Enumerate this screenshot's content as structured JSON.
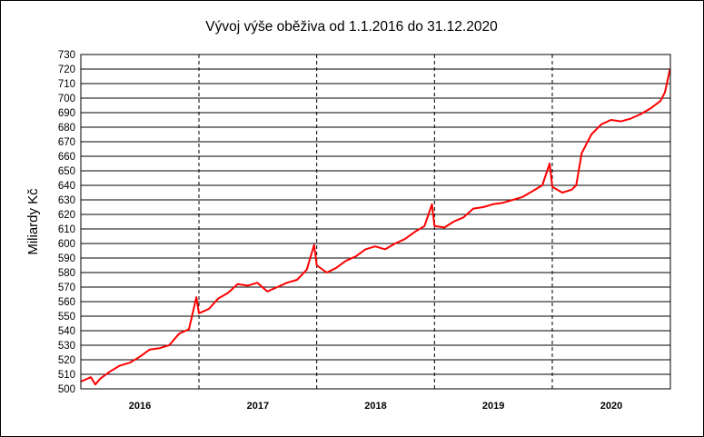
{
  "chart_data": {
    "type": "line",
    "title": "Vývoj výše oběživa od 1.1.2016 do 31.12.2020",
    "xlabel": "",
    "ylabel": "Miliardy Kč",
    "ylim": [
      500,
      730
    ],
    "y_ticks": [
      500,
      510,
      520,
      530,
      540,
      550,
      560,
      570,
      580,
      590,
      600,
      610,
      620,
      630,
      640,
      650,
      660,
      670,
      680,
      690,
      700,
      710,
      720,
      730
    ],
    "x_categories": [
      "2016",
      "2017",
      "2018",
      "2019",
      "2020"
    ],
    "grid": {
      "horizontal": true,
      "year_separators": "dashed"
    },
    "line_color": "#ff0000",
    "series": [
      {
        "x": [
          "2016-01-01",
          "2016-02-01",
          "2016-02-15",
          "2016-03-01",
          "2016-04-01",
          "2016-05-01",
          "2016-06-01",
          "2016-07-01",
          "2016-08-01",
          "2016-09-01",
          "2016-10-01",
          "2016-11-01",
          "2016-12-01",
          "2016-12-24",
          "2017-01-01",
          "2017-02-01",
          "2017-03-01",
          "2017-04-01",
          "2017-05-01",
          "2017-06-01",
          "2017-07-01",
          "2017-08-01",
          "2017-09-01",
          "2017-10-01",
          "2017-11-01",
          "2017-12-01",
          "2017-12-24",
          "2018-01-01",
          "2018-02-01",
          "2018-03-01",
          "2018-04-01",
          "2018-05-01",
          "2018-06-01",
          "2018-07-01",
          "2018-08-01",
          "2018-09-01",
          "2018-10-01",
          "2018-11-01",
          "2018-12-01",
          "2018-12-24",
          "2019-01-01",
          "2019-02-01",
          "2019-03-01",
          "2019-04-01",
          "2019-05-01",
          "2019-06-01",
          "2019-07-01",
          "2019-08-01",
          "2019-09-01",
          "2019-10-01",
          "2019-11-01",
          "2019-12-01",
          "2019-12-24",
          "2020-01-01",
          "2020-02-01",
          "2020-03-01",
          "2020-03-15",
          "2020-04-01",
          "2020-05-01",
          "2020-06-01",
          "2020-07-01",
          "2020-08-01",
          "2020-09-01",
          "2020-10-01",
          "2020-11-01",
          "2020-12-01",
          "2020-12-15",
          "2020-12-31"
        ],
        "values": [
          505,
          508,
          503,
          507,
          512,
          516,
          518,
          522,
          527,
          528,
          530,
          538,
          541,
          563,
          552,
          555,
          562,
          566,
          572,
          571,
          573,
          567,
          570,
          573,
          575,
          582,
          599,
          585,
          580,
          583,
          588,
          591,
          596,
          598,
          596,
          600,
          603,
          608,
          612,
          627,
          612,
          611,
          615,
          618,
          624,
          625,
          627,
          628,
          630,
          632,
          636,
          640,
          655,
          639,
          635,
          637,
          640,
          662,
          675,
          682,
          685,
          684,
          686,
          689,
          693,
          698,
          704,
          720
        ]
      }
    ]
  }
}
